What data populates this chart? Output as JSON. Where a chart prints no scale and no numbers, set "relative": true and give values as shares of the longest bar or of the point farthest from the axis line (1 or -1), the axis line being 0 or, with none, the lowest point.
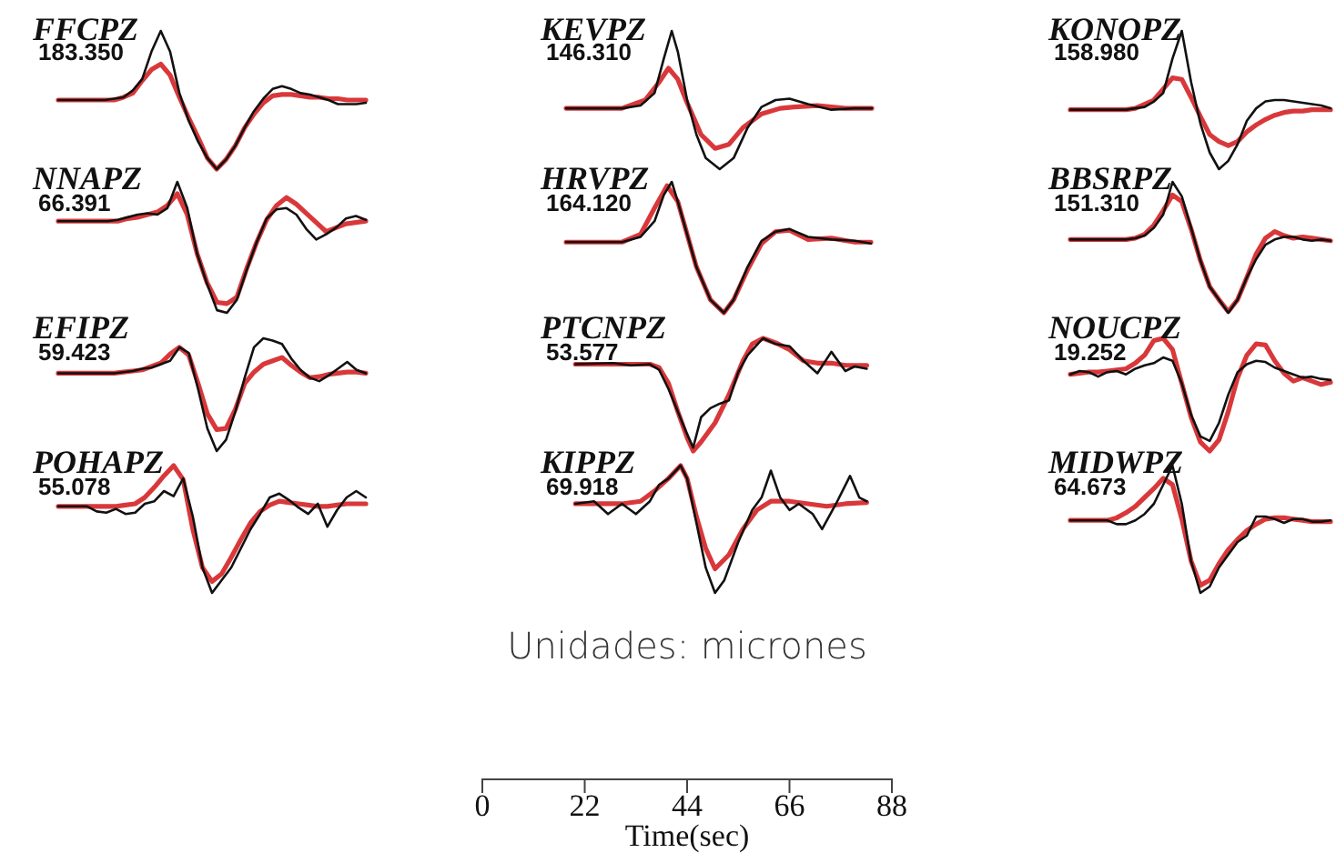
{
  "chart_data": [
    {
      "type": "line",
      "title": "FFCPZ",
      "annotations": [
        "183.350"
      ],
      "relative": true,
      "tick_labels": false,
      "categories": [
        null,
        null,
        null,
        null,
        null,
        null,
        null,
        null,
        null,
        null,
        null,
        null,
        null,
        null,
        null,
        null,
        null,
        null,
        null,
        null,
        null,
        null,
        null,
        null,
        null,
        null,
        null,
        null,
        null,
        null,
        null,
        null,
        null,
        null
      ],
      "series": [
        {
          "color": "#111111",
          "values": [
            0.5,
            0.5,
            0.5,
            0.5,
            0.5,
            0.5,
            0.51,
            0.52,
            0.57,
            0.65,
            0.85,
            1.0,
            0.85,
            0.55,
            0.35,
            0.2,
            0.08,
            0.0,
            0.07,
            0.17,
            0.3,
            0.42,
            0.51,
            0.58,
            0.6,
            0.58,
            0.55,
            0.54,
            0.52,
            0.5,
            0.47,
            0.47,
            0.47,
            0.48
          ]
        },
        {
          "color": "#d9383a",
          "values": [
            0.5,
            0.5,
            0.5,
            0.5,
            0.5,
            0.5,
            0.5,
            0.52,
            0.55,
            0.64,
            0.72,
            0.76,
            0.68,
            0.52,
            0.37,
            0.23,
            0.08,
            0.0,
            0.07,
            0.17,
            0.3,
            0.4,
            0.48,
            0.53,
            0.54,
            0.54,
            0.53,
            0.52,
            0.52,
            0.51,
            0.51,
            0.5,
            0.5,
            0.5
          ]
        }
      ]
    },
    {
      "type": "line",
      "title": "KEVPZ",
      "annotations": [
        "146.310"
      ],
      "relative": true,
      "xlim": [
        0,
        88
      ],
      "tick_labels": false,
      "series": [
        {
          "color": "#111111",
          "x": [
            18,
            30,
            34,
            37,
            39,
            40.7,
            42,
            44,
            46,
            48,
            51,
            54,
            57,
            60,
            63,
            66,
            70,
            75,
            80,
            83.7
          ],
          "values": [
            0.44,
            0.44,
            0.46,
            0.55,
            0.8,
            1.0,
            0.85,
            0.5,
            0.25,
            0.08,
            0.0,
            0.08,
            0.3,
            0.45,
            0.5,
            0.51,
            0.47,
            0.43,
            0.44,
            0.44
          ]
        },
        {
          "color": "#d9383a",
          "x": [
            18,
            30,
            35,
            38,
            40,
            42,
            44,
            47,
            50,
            53,
            56,
            60,
            64,
            67,
            72,
            78,
            83.7
          ],
          "values": [
            0.44,
            0.44,
            0.5,
            0.63,
            0.73,
            0.65,
            0.48,
            0.25,
            0.15,
            0.18,
            0.3,
            0.4,
            0.44,
            0.45,
            0.46,
            0.44,
            0.44
          ]
        }
      ]
    },
    {
      "type": "line",
      "title": "KONOPZ",
      "annotations": [
        "158.980"
      ],
      "relative": true,
      "tick_labels": false,
      "categories": [
        null,
        null,
        null,
        null,
        null,
        null,
        null,
        null,
        null,
        null,
        null,
        null,
        null,
        null,
        null,
        null,
        null,
        null,
        null,
        null,
        null,
        null,
        null,
        null,
        null,
        null,
        null,
        null,
        null
      ],
      "series": [
        {
          "color": "#111111",
          "values": [
            0.43,
            0.43,
            0.43,
            0.43,
            0.43,
            0.43,
            0.43,
            0.44,
            0.45,
            0.49,
            0.55,
            0.8,
            1.0,
            0.63,
            0.33,
            0.12,
            0.0,
            0.06,
            0.18,
            0.35,
            0.44,
            0.49,
            0.5,
            0.5,
            0.49,
            0.48,
            0.47,
            0.46,
            0.44
          ]
        },
        {
          "color": "#d9383a",
          "values": [
            0.43,
            0.43,
            0.43,
            0.43,
            0.43,
            0.43,
            0.43,
            0.44,
            0.47,
            0.5,
            0.58,
            0.66,
            0.65,
            0.52,
            0.38,
            0.25,
            0.2,
            0.17,
            0.2,
            0.27,
            0.32,
            0.36,
            0.39,
            0.41,
            0.42,
            0.42,
            0.43,
            0.43,
            0.43
          ]
        }
      ]
    },
    {
      "type": "line",
      "title": "NNAPZ",
      "annotations": [
        "66.391"
      ],
      "relative": true,
      "tick_labels": false,
      "categories": [
        null,
        null,
        null,
        null,
        null,
        null,
        null,
        null,
        null,
        null,
        null,
        null,
        null,
        null,
        null,
        null,
        null,
        null,
        null,
        null,
        null,
        null,
        null,
        null,
        null,
        null,
        null,
        null,
        null,
        null,
        null,
        null
      ],
      "series": [
        {
          "color": "#111111",
          "values": [
            0.7,
            0.7,
            0.7,
            0.7,
            0.7,
            0.7,
            0.71,
            0.73,
            0.75,
            0.76,
            0.75,
            0.8,
            1.0,
            0.8,
            0.45,
            0.22,
            0.02,
            0.0,
            0.1,
            0.33,
            0.54,
            0.72,
            0.79,
            0.8,
            0.75,
            0.64,
            0.56,
            0.6,
            0.65,
            0.72,
            0.74,
            0.71
          ]
        },
        {
          "color": "#d9383a",
          "values": [
            0.7,
            0.7,
            0.7,
            0.7,
            0.7,
            0.7,
            0.7,
            0.72,
            0.73,
            0.75,
            0.77,
            0.82,
            0.91,
            0.75,
            0.45,
            0.23,
            0.08,
            0.07,
            0.12,
            0.34,
            0.54,
            0.71,
            0.82,
            0.88,
            0.83,
            0.76,
            0.69,
            0.62,
            0.65,
            0.68,
            0.69,
            0.7
          ]
        }
      ]
    },
    {
      "type": "line",
      "title": "HRVPZ",
      "annotations": [
        "164.120"
      ],
      "relative": true,
      "xlim": [
        0,
        88
      ],
      "tick_labels": false,
      "series": [
        {
          "color": "#111111",
          "x": [
            18,
            30,
            34,
            37,
            39,
            40.7,
            42,
            44,
            46,
            49,
            51.9,
            54,
            57,
            60,
            63,
            66,
            70,
            75,
            80,
            83.5
          ],
          "values": [
            0.54,
            0.54,
            0.58,
            0.7,
            0.9,
            1.0,
            0.85,
            0.6,
            0.35,
            0.1,
            0.0,
            0.1,
            0.35,
            0.55,
            0.62,
            0.64,
            0.58,
            0.56,
            0.55,
            0.53
          ]
        },
        {
          "color": "#d9383a",
          "x": [
            18,
            30,
            34,
            37,
            39.7,
            42,
            44,
            46,
            49,
            51.9,
            54,
            57,
            60,
            63,
            66,
            70,
            75,
            80,
            83.5
          ],
          "values": [
            0.54,
            0.54,
            0.6,
            0.8,
            0.97,
            0.85,
            0.6,
            0.35,
            0.1,
            0.0,
            0.1,
            0.33,
            0.53,
            0.62,
            0.63,
            0.56,
            0.57,
            0.54,
            0.54
          ]
        }
      ]
    },
    {
      "type": "line",
      "title": "BBSRPZ",
      "annotations": [
        "151.310"
      ],
      "relative": true,
      "tick_labels": false,
      "categories": [
        null,
        null,
        null,
        null,
        null,
        null,
        null,
        null,
        null,
        null,
        null,
        null,
        null,
        null,
        null,
        null,
        null,
        null,
        null,
        null,
        null,
        null,
        null,
        null,
        null,
        null,
        null,
        null,
        null
      ],
      "series": [
        {
          "color": "#111111",
          "values": [
            0.56,
            0.56,
            0.56,
            0.56,
            0.56,
            0.56,
            0.56,
            0.57,
            0.59,
            0.65,
            0.75,
            1.0,
            0.89,
            0.65,
            0.4,
            0.2,
            0.1,
            0.0,
            0.1,
            0.27,
            0.41,
            0.52,
            0.56,
            0.58,
            0.58,
            0.56,
            0.55,
            0.56,
            0.55
          ]
        },
        {
          "color": "#d9383a",
          "values": [
            0.56,
            0.56,
            0.56,
            0.56,
            0.56,
            0.56,
            0.56,
            0.57,
            0.6,
            0.67,
            0.78,
            0.9,
            0.85,
            0.64,
            0.4,
            0.2,
            0.1,
            0.01,
            0.1,
            0.27,
            0.45,
            0.57,
            0.62,
            0.59,
            0.57,
            0.58,
            0.57,
            0.56,
            0.55
          ]
        }
      ]
    },
    {
      "type": "line",
      "title": "EFIPZ",
      "annotations": [
        "59.423"
      ],
      "relative": true,
      "tick_labels": false,
      "categories": [
        null,
        null,
        null,
        null,
        null,
        null,
        null,
        null,
        null,
        null,
        null,
        null,
        null,
        null,
        null,
        null,
        null,
        null,
        null,
        null,
        null,
        null,
        null,
        null,
        null,
        null,
        null,
        null,
        null,
        null,
        null,
        null,
        null,
        null
      ],
      "series": [
        {
          "color": "#111111",
          "values": [
            0.69,
            0.69,
            0.69,
            0.69,
            0.69,
            0.69,
            0.69,
            0.7,
            0.71,
            0.73,
            0.74,
            0.77,
            0.8,
            0.92,
            0.87,
            0.55,
            0.2,
            0.0,
            0.1,
            0.35,
            0.65,
            0.92,
            1.0,
            0.98,
            0.95,
            0.82,
            0.72,
            0.65,
            0.62,
            0.67,
            0.73,
            0.79,
            0.72,
            0.69
          ]
        },
        {
          "color": "#d9383a",
          "values": [
            0.69,
            0.69,
            0.69,
            0.69,
            0.69,
            0.69,
            0.69,
            0.7,
            0.71,
            0.72,
            0.75,
            0.78,
            0.86,
            0.92,
            0.85,
            0.6,
            0.33,
            0.19,
            0.2,
            0.37,
            0.6,
            0.7,
            0.77,
            0.8,
            0.83,
            0.76,
            0.7,
            0.65,
            0.66,
            0.68,
            0.69,
            0.7,
            0.7,
            0.69
          ]
        }
      ]
    },
    {
      "type": "line",
      "title": "PTCNPZ",
      "annotations": [
        "53.577"
      ],
      "relative": true,
      "xlim": [
        0,
        88
      ],
      "tick_labels": false,
      "series": [
        {
          "color": "#111111",
          "x": [
            20,
            28,
            32,
            36,
            38,
            40,
            42,
            44,
            45.3,
            47,
            49,
            51,
            53,
            55,
            57,
            60.3,
            63,
            66,
            69,
            72,
            75,
            78,
            80,
            82.6
          ],
          "values": [
            0.77,
            0.78,
            0.76,
            0.77,
            0.72,
            0.55,
            0.35,
            0.15,
            0.03,
            0.3,
            0.38,
            0.42,
            0.45,
            0.7,
            0.85,
            1.0,
            0.95,
            0.93,
            0.8,
            0.69,
            0.88,
            0.71,
            0.75,
            0.73
          ]
        },
        {
          "color": "#d9383a",
          "x": [
            20,
            30,
            36,
            38,
            40,
            42,
            44,
            45.3,
            47,
            50,
            53,
            56,
            58,
            60.3,
            63,
            66,
            69,
            72,
            75,
            78,
            82.6
          ],
          "values": [
            0.77,
            0.77,
            0.77,
            0.74,
            0.6,
            0.35,
            0.12,
            0.0,
            0.08,
            0.25,
            0.5,
            0.8,
            0.95,
            1.0,
            0.96,
            0.9,
            0.8,
            0.78,
            0.78,
            0.76,
            0.76
          ]
        }
      ]
    },
    {
      "type": "line",
      "title": "NOUCPZ",
      "annotations": [
        "19.252"
      ],
      "relative": true,
      "tick_labels": false,
      "categories": [
        null,
        null,
        null,
        null,
        null,
        null,
        null,
        null,
        null,
        null,
        null,
        null,
        null,
        null,
        null,
        null,
        null,
        null,
        null,
        null,
        null,
        null,
        null,
        null,
        null,
        null,
        null,
        null,
        null
      ],
      "series": [
        {
          "color": "#111111",
          "values": [
            0.68,
            0.71,
            0.7,
            0.66,
            0.7,
            0.71,
            0.68,
            0.73,
            0.76,
            0.78,
            0.83,
            0.8,
            0.6,
            0.32,
            0.13,
            0.09,
            0.25,
            0.5,
            0.7,
            0.77,
            0.8,
            0.79,
            0.74,
            0.71,
            0.68,
            0.65,
            0.66,
            0.64,
            0.63
          ]
        },
        {
          "color": "#d9383a",
          "values": [
            0.68,
            0.69,
            0.7,
            0.7,
            0.71,
            0.72,
            0.73,
            0.78,
            0.85,
            0.98,
            1.0,
            0.9,
            0.6,
            0.3,
            0.08,
            0.0,
            0.1,
            0.35,
            0.65,
            0.85,
            0.95,
            0.94,
            0.8,
            0.69,
            0.62,
            0.65,
            0.62,
            0.59,
            0.61
          ]
        }
      ]
    },
    {
      "type": "line",
      "title": "POHAPZ",
      "annotations": [
        "55.078"
      ],
      "relative": true,
      "tick_labels": false,
      "categories": [
        null,
        null,
        null,
        null,
        null,
        null,
        null,
        null,
        null,
        null,
        null,
        null,
        null,
        null,
        null,
        null,
        null,
        null,
        null,
        null,
        null,
        null,
        null,
        null,
        null,
        null,
        null,
        null,
        null,
        null,
        null,
        null,
        null
      ],
      "series": [
        {
          "color": "#111111",
          "values": [
            0.68,
            0.68,
            0.68,
            0.68,
            0.64,
            0.63,
            0.66,
            0.62,
            0.63,
            0.7,
            0.72,
            0.8,
            0.76,
            0.9,
            0.6,
            0.2,
            0.0,
            0.1,
            0.2,
            0.35,
            0.5,
            0.62,
            0.75,
            0.78,
            0.73,
            0.67,
            0.62,
            0.7,
            0.52,
            0.65,
            0.75,
            0.8,
            0.75
          ]
        },
        {
          "color": "#d9383a",
          "values": [
            0.68,
            0.68,
            0.68,
            0.68,
            0.68,
            0.68,
            0.68,
            0.69,
            0.7,
            0.75,
            0.83,
            0.92,
            1.0,
            0.89,
            0.5,
            0.2,
            0.09,
            0.15,
            0.28,
            0.42,
            0.55,
            0.64,
            0.69,
            0.72,
            0.71,
            0.7,
            0.69,
            0.68,
            0.68,
            0.69,
            0.7,
            0.7,
            0.7
          ]
        }
      ]
    },
    {
      "type": "line",
      "title": "KIPPZ",
      "annotations": [
        "69.918",
        "Unidades: micrones"
      ],
      "xlabel": "Time(sec)",
      "relative": true,
      "xlim": [
        0,
        88
      ],
      "xticks": [
        0,
        22,
        44,
        66,
        88
      ],
      "tick_labels": "x",
      "series": [
        {
          "color": "#111111",
          "x": [
            20,
            24,
            27,
            30,
            33,
            36,
            38,
            40,
            42.6,
            44,
            46,
            48,
            50,
            52,
            55,
            58,
            60,
            62,
            64,
            66,
            68,
            71,
            73,
            76,
            79,
            81,
            82.6
          ],
          "values": [
            0.878,
            0.886,
            0.845,
            0.878,
            0.845,
            0.886,
            0.939,
            0.959,
            1.0,
            0.959,
            0.817,
            0.674,
            0.593,
            0.634,
            0.756,
            0.858,
            0.898,
            0.984,
            0.898,
            0.858,
            0.878,
            0.845,
            0.797,
            0.878,
            0.967,
            0.898,
            0.886
          ]
        },
        {
          "color": "#d9383a",
          "x": [
            20,
            30,
            34,
            37,
            40,
            42.6,
            44,
            46,
            48,
            50,
            53,
            56,
            59,
            62,
            66,
            70,
            74,
            78,
            82.6
          ],
          "values": [
            0.878,
            0.878,
            0.886,
            0.919,
            0.959,
            1.0,
            0.959,
            0.837,
            0.735,
            0.67,
            0.715,
            0.797,
            0.858,
            0.886,
            0.886,
            0.878,
            0.87,
            0.878,
            0.882
          ]
        }
      ]
    },
    {
      "type": "line",
      "title": "MIDWPZ",
      "annotations": [
        "64.673"
      ],
      "relative": true,
      "tick_labels": false,
      "categories": [
        null,
        null,
        null,
        null,
        null,
        null,
        null,
        null,
        null,
        null,
        null,
        null,
        null,
        null,
        null,
        null,
        null,
        null,
        null,
        null,
        null,
        null,
        null,
        null,
        null,
        null,
        null,
        null,
        null
      ],
      "series": [
        {
          "color": "#111111",
          "values": [
            0.57,
            0.57,
            0.57,
            0.57,
            0.57,
            0.54,
            0.54,
            0.57,
            0.62,
            0.7,
            0.85,
            1.0,
            0.7,
            0.25,
            0.0,
            0.05,
            0.2,
            0.3,
            0.4,
            0.45,
            0.6,
            0.6,
            0.58,
            0.55,
            0.58,
            0.58,
            0.56,
            0.56,
            0.57
          ]
        },
        {
          "color": "#d9383a",
          "values": [
            0.57,
            0.57,
            0.57,
            0.57,
            0.57,
            0.59,
            0.63,
            0.68,
            0.75,
            0.82,
            0.9,
            0.85,
            0.58,
            0.25,
            0.06,
            0.1,
            0.23,
            0.34,
            0.42,
            0.49,
            0.54,
            0.58,
            0.59,
            0.59,
            0.58,
            0.57,
            0.56,
            0.56,
            0.56
          ]
        }
      ]
    }
  ]
}
